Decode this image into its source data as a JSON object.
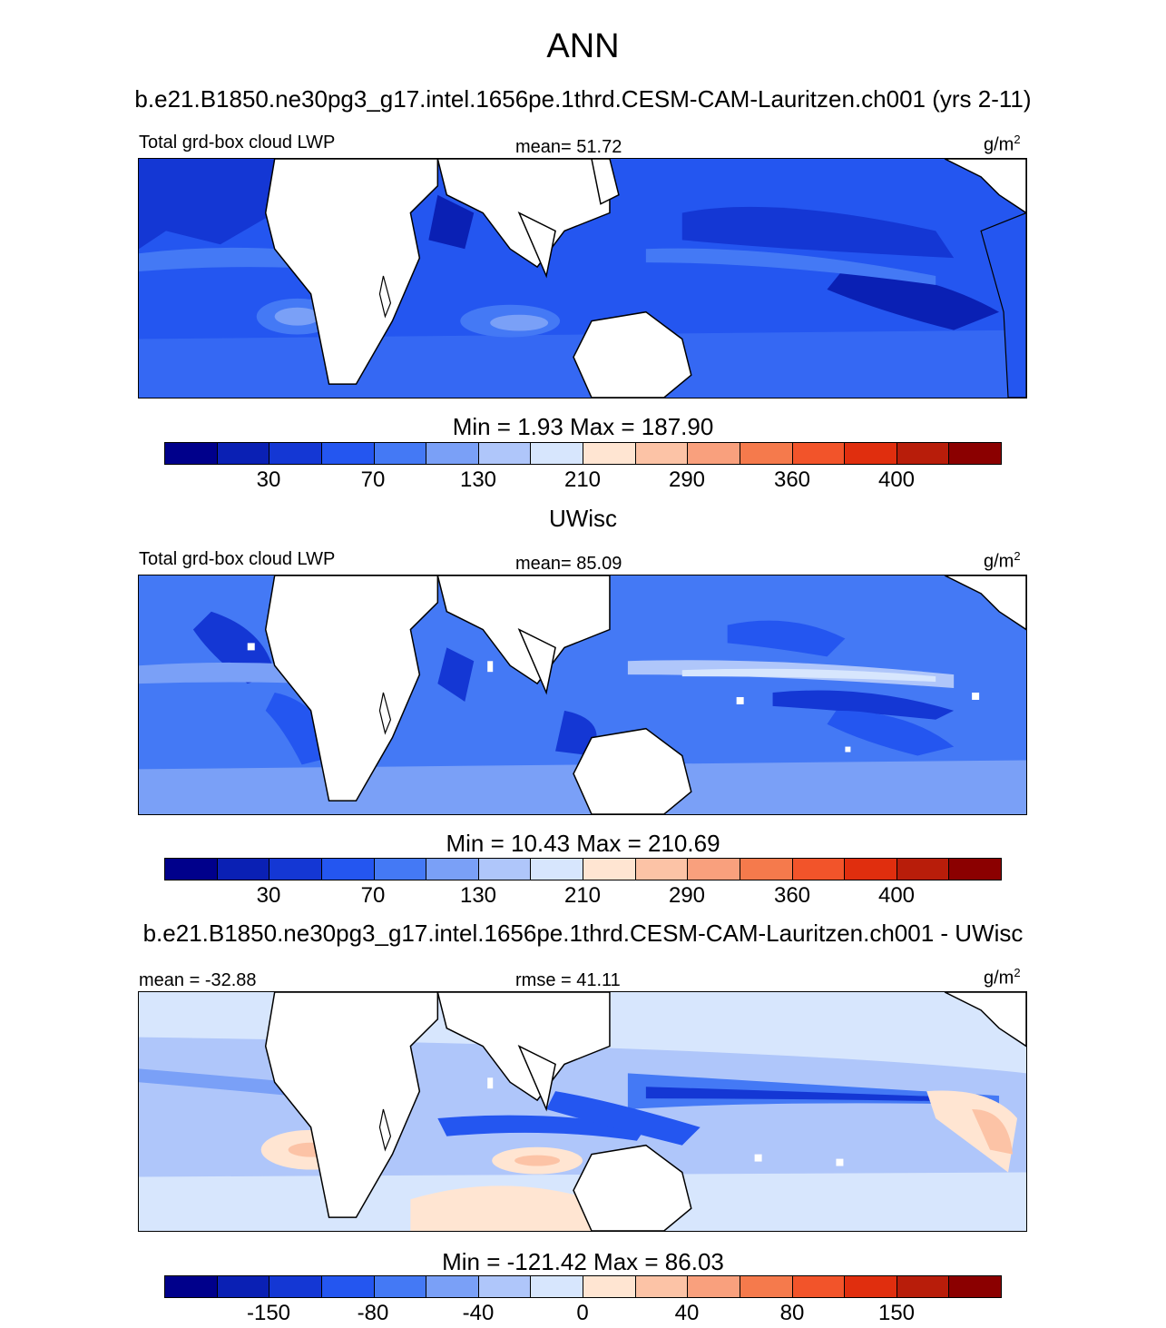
{
  "title": "ANN",
  "subtitle": "b.e21.B1850.ne30pg3_g17.intel.1656pe.1thrd.CESM-CAM-Lauritzen.ch001 (yrs 2-11)",
  "colors": [
    "#00008b",
    "#0a20b4",
    "#1437d4",
    "#2456f0",
    "#4479f5",
    "#7aa0f7",
    "#afc6fa",
    "#d7e6fd",
    "#ffe5d2",
    "#fcc3a6",
    "#f9a07d",
    "#f57a4c",
    "#f2542a",
    "#e02e0e",
    "#b81d0a",
    "#8b0000"
  ],
  "panels": [
    {
      "left_label": "Total grd-box cloud LWP",
      "mid_label": "mean=  51.72",
      "units_base": "g/m",
      "units_exp": "2",
      "minmax": "Min =    1.93 Max = 187.90",
      "ticks": [
        "30",
        "70",
        "130",
        "210",
        "290",
        "360",
        "400"
      ]
    },
    {
      "title": "UWisc",
      "left_label": "Total grd-box cloud LWP",
      "mid_label": "mean=  85.09",
      "units_base": "g/m",
      "units_exp": "2",
      "minmax": "Min =  10.43 Max = 210.69",
      "ticks": [
        "30",
        "70",
        "130",
        "210",
        "290",
        "360",
        "400"
      ]
    },
    {
      "title": "b.e21.B1850.ne30pg3_g17.intel.1656pe.1thrd.CESM-CAM-Lauritzen.ch001 - UWisc",
      "left_label": "mean = -32.88",
      "mid_label": "rmse =  41.11",
      "units_base": "g/m",
      "units_exp": "2",
      "minmax": "Min = -121.42 Max =  86.03",
      "ticks": [
        "-150",
        "-80",
        "-40",
        "0",
        "40",
        "80",
        "150"
      ]
    }
  ]
}
